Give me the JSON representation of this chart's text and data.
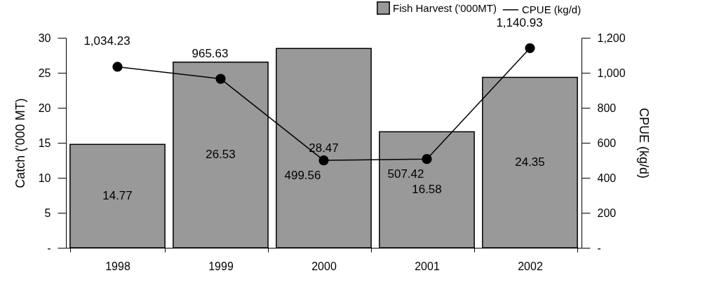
{
  "chart_data": {
    "type": "bar",
    "categories": [
      "1998",
      "1999",
      "2000",
      "2001",
      "2002"
    ],
    "ylabel": "Catch ('000 MT)",
    "y2label": "CPUE  (kg/d)",
    "ylim": [
      0,
      30
    ],
    "yticks": [
      {
        "value": 0,
        "label": "-"
      },
      5,
      10,
      15,
      20,
      25,
      30
    ],
    "y2lim": [
      0,
      1200
    ],
    "y2ticks": [
      {
        "value": 0,
        "label": "-"
      },
      200,
      400,
      600,
      800,
      {
        "value": 1000,
        "label": "1,000"
      },
      {
        "value": 1200,
        "label": "1,200"
      }
    ],
    "series": [
      {
        "name": "Fish Harvest ('000MT)",
        "color": "#999999",
        "values": [
          14.77,
          26.53,
          28.47,
          16.58,
          24.35
        ],
        "value_labels": [
          "14.77",
          "26.53",
          "28.47",
          "16.58",
          "24.35"
        ]
      },
      {
        "name": "CPUE (kg/d)",
        "type": "line",
        "axis": "y2",
        "color": "#000000",
        "values": [
          1034.23,
          965.63,
          499.56,
          507.42,
          1140.93
        ],
        "value_labels": [
          "1,034.23",
          "965.63",
          "499.56",
          "507.42",
          "1,140.93"
        ]
      }
    ],
    "marker": "circle",
    "legend": "top right",
    "grid": false
  }
}
